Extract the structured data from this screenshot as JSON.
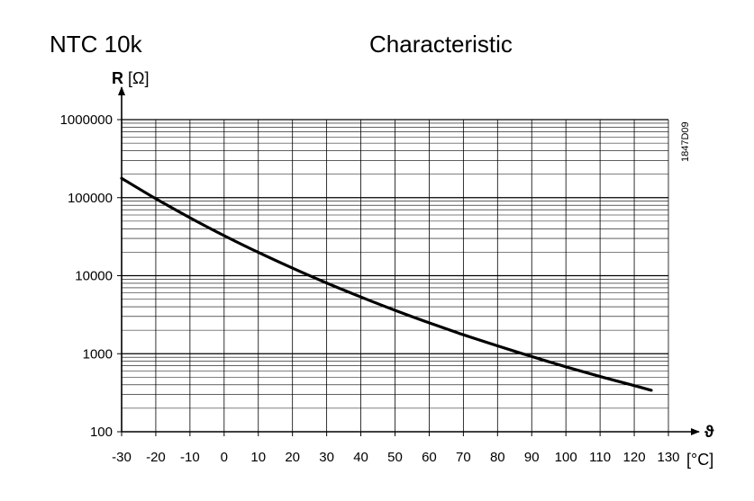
{
  "chart_data": {
    "type": "line",
    "title": "NTC 10k",
    "subtitle": "Characteristic",
    "code": "1847D09",
    "ylabel_bold": "R",
    "ylabel_unit": "[Ω]",
    "xlabel_symbol": "ϑ",
    "xlabel_unit": "[°C]",
    "y_scale": "log",
    "ylim": [
      100,
      1000000
    ],
    "xlim": [
      -30,
      130
    ],
    "grid": true,
    "x_ticks": [
      -30,
      -20,
      -10,
      0,
      10,
      20,
      30,
      40,
      50,
      60,
      70,
      80,
      90,
      100,
      110,
      120,
      130
    ],
    "x_tick_labels": [
      "-30",
      "-20",
      "-10",
      "0",
      "10",
      "20",
      "30",
      "40",
      "50",
      "60",
      "70",
      "80",
      "90",
      "100",
      "110",
      "120",
      "130"
    ],
    "y_ticks": [
      100,
      1000,
      10000,
      100000,
      1000000
    ],
    "y_tick_labels": [
      "100",
      "1000",
      "10000",
      "100000",
      "1000000"
    ],
    "series": [
      {
        "x": [
          -30,
          -20,
          -10,
          0,
          10,
          20,
          30,
          40,
          50,
          60,
          70,
          80,
          90,
          100,
          110,
          120,
          125
        ],
        "y": [
          177000,
          97000,
          55300,
          32600,
          19900,
          12500,
          8060,
          5330,
          3600,
          2490,
          1750,
          1260,
          920,
          680,
          510,
          390,
          340
        ]
      }
    ]
  }
}
